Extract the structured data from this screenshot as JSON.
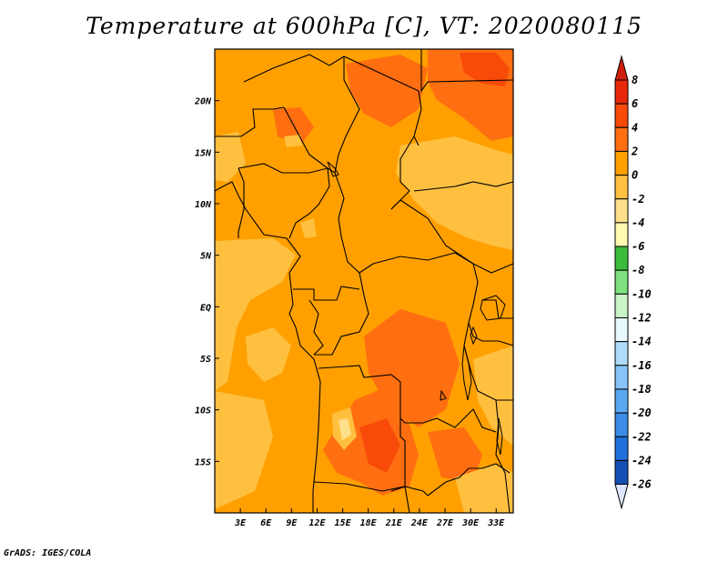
{
  "title": "Temperature at 600hPa [C], VT: 2020080115",
  "credit": "GrADS: IGES/COLA",
  "map": {
    "lon_range": [
      0,
      35
    ],
    "lat_range": [
      -20,
      25
    ],
    "lon_ticks": [
      {
        "v": 3,
        "label": "3E"
      },
      {
        "v": 6,
        "label": "6E"
      },
      {
        "v": 9,
        "label": "9E"
      },
      {
        "v": 12,
        "label": "12E"
      },
      {
        "v": 15,
        "label": "15E"
      },
      {
        "v": 18,
        "label": "18E"
      },
      {
        "v": 21,
        "label": "21E"
      },
      {
        "v": 24,
        "label": "24E"
      },
      {
        "v": 27,
        "label": "27E"
      },
      {
        "v": 30,
        "label": "30E"
      },
      {
        "v": 33,
        "label": "33E"
      }
    ],
    "lat_ticks": [
      {
        "v": 20,
        "label": "20N"
      },
      {
        "v": 15,
        "label": "15N"
      },
      {
        "v": 10,
        "label": "10N"
      },
      {
        "v": 5,
        "label": "5N"
      },
      {
        "v": 0,
        "label": "EQ"
      },
      {
        "v": -5,
        "label": "5S"
      },
      {
        "v": -10,
        "label": "10S"
      },
      {
        "v": -15,
        "label": "15S"
      }
    ],
    "base_color": "#ffa000"
  },
  "colorbar": {
    "levels": [
      {
        "label": "8",
        "color": "#e8280a"
      },
      {
        "label": "6",
        "color": "#f84a08"
      },
      {
        "label": "4",
        "color": "#ff6e10"
      },
      {
        "label": "2",
        "color": "#ffa000"
      },
      {
        "label": "0",
        "color": "#ffc040"
      },
      {
        "label": "-2",
        "color": "#ffe08a"
      },
      {
        "label": "-4",
        "color": "#fffab0"
      },
      {
        "label": "-6",
        "color": "#3cbc3c"
      },
      {
        "label": "-8",
        "color": "#7ee07e"
      },
      {
        "label": "-10",
        "color": "#c8f4c8"
      },
      {
        "label": "-12",
        "color": "#e6f8fc"
      },
      {
        "label": "-14",
        "color": "#b0dcfa"
      },
      {
        "label": "-16",
        "color": "#88c4f8"
      },
      {
        "label": "-18",
        "color": "#5aa8f0"
      },
      {
        "label": "-20",
        "color": "#3c8ce8"
      },
      {
        "label": "-22",
        "color": "#2070dc"
      },
      {
        "label": "-24",
        "color": "#1450b4"
      },
      {
        "label": "-26",
        "color": "#0a1e78"
      }
    ],
    "top_arrow_color": "#d01e0a",
    "bottom_arrow_color": "#dce6ff"
  }
}
